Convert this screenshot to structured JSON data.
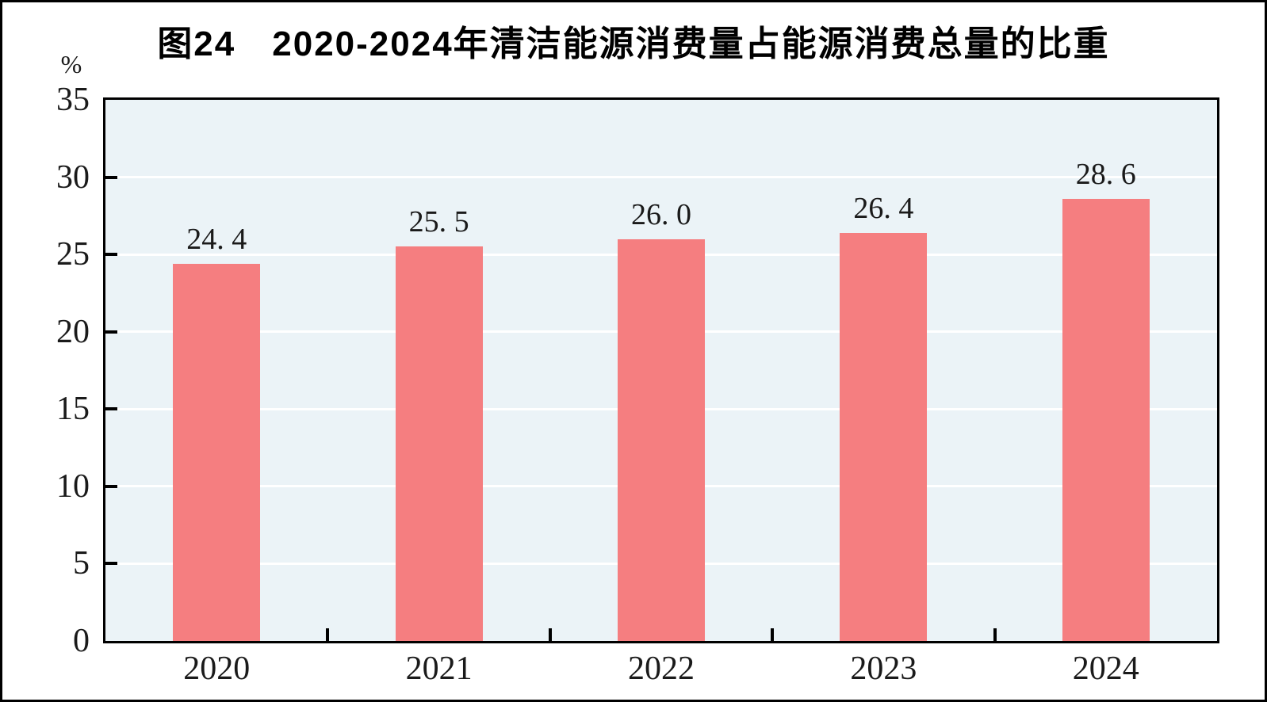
{
  "chart_data": {
    "type": "bar",
    "title": "图24　2020-2024年清洁能源消费量占能源消费总量的比重",
    "unit_label": "%",
    "categories": [
      "2020",
      "2021",
      "2022",
      "2023",
      "2024"
    ],
    "values": [
      24.4,
      25.5,
      26.0,
      26.4,
      28.6
    ],
    "bar_labels": [
      "24. 4",
      "25. 5",
      "26. 0",
      "26. 4",
      "28. 6"
    ],
    "xlabel": "",
    "ylabel": "%",
    "ylim": [
      0,
      35
    ],
    "y_ticks": [
      0,
      5,
      10,
      15,
      20,
      25,
      30,
      35
    ],
    "grid": "horizontal",
    "legend": "none",
    "colors": {
      "bar": "#F57E80",
      "plot_background": "#EBF3F7",
      "gridline": "#FFFFFF",
      "axis": "#000000",
      "text": "#1A1A1A"
    }
  }
}
